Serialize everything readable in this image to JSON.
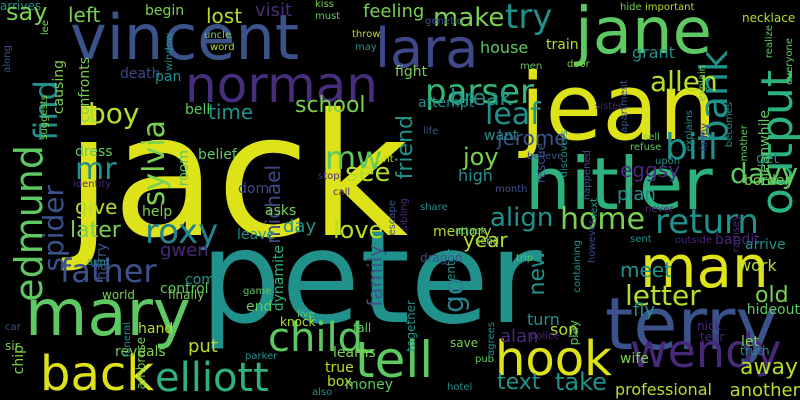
{
  "words": [
    {
      "text": "jack",
      "color": "#dde318"
    },
    {
      "text": "peter",
      "color": "#21918c"
    },
    {
      "text": "jean",
      "color": "#dde318"
    },
    {
      "text": "vincent",
      "color": "#3b528b"
    },
    {
      "text": "hitler",
      "color": "#2db27d"
    },
    {
      "text": "jane",
      "color": "#5ec962"
    },
    {
      "text": "lara",
      "color": "#3e4989"
    },
    {
      "text": "norman",
      "color": "#472d7b"
    },
    {
      "text": "mary",
      "color": "#5ec962"
    },
    {
      "text": "terry",
      "color": "#3b528b"
    },
    {
      "text": "man",
      "color": "#dde318"
    },
    {
      "text": "tell",
      "color": "#5ec962"
    },
    {
      "text": "hook",
      "color": "#dde318"
    },
    {
      "text": "back",
      "color": "#dde318"
    },
    {
      "text": "elliott",
      "color": "#2db27d"
    },
    {
      "text": "child",
      "color": "#5ec962"
    },
    {
      "text": "wendy",
      "color": "#482878"
    },
    {
      "text": "edmund",
      "color": "#5ec962"
    },
    {
      "text": "find",
      "color": "#21918c"
    },
    {
      "text": "output",
      "color": "#2db27d"
    },
    {
      "text": "bank",
      "color": "#21918c"
    },
    {
      "text": "father",
      "color": "#3b528b"
    },
    {
      "text": "parser",
      "color": "#35b779"
    },
    {
      "text": "bill",
      "color": "#21918c"
    },
    {
      "text": "return",
      "color": "#21918c"
    },
    {
      "text": "roxy",
      "color": "#26828e"
    },
    {
      "text": "sylvia",
      "color": "#7ad151"
    },
    {
      "text": "spider",
      "color": "#3b528b"
    },
    {
      "text": "mw",
      "color": "#5ec962"
    },
    {
      "text": "mr",
      "color": "#21918c"
    },
    {
      "text": "boy",
      "color": "#b5de2b"
    },
    {
      "text": "try",
      "color": "#21918c"
    },
    {
      "text": "home",
      "color": "#7ad151"
    },
    {
      "text": "letter",
      "color": "#b5de2b"
    },
    {
      "text": "go",
      "color": "#26828e"
    },
    {
      "text": "see",
      "color": "#b5de2b"
    },
    {
      "text": "leaf",
      "color": "#21918c"
    },
    {
      "text": "allen",
      "color": "#b5de2b"
    },
    {
      "text": "davy",
      "color": "#5ec962"
    },
    {
      "text": "take",
      "color": "#21918c"
    },
    {
      "text": "love",
      "color": "#b5de2b"
    },
    {
      "text": "text",
      "color": "#21918c"
    },
    {
      "text": "arrives",
      "color": "#21918c"
    },
    {
      "text": "align",
      "color": "#21918c"
    },
    {
      "text": "make",
      "color": "#7ad151"
    },
    {
      "text": "say",
      "color": "#7ad151"
    },
    {
      "text": "later",
      "color": "#7ad151"
    },
    {
      "text": "away",
      "color": "#b5de2b"
    },
    {
      "text": "old",
      "color": "#7ad151"
    },
    {
      "text": "joy",
      "color": "#7ad151"
    },
    {
      "text": "friend",
      "color": "#21918c"
    },
    {
      "text": "michael",
      "color": "#3e4989"
    },
    {
      "text": "school",
      "color": "#7ad151"
    },
    {
      "text": "break",
      "color": "#21918c"
    },
    {
      "text": "year",
      "color": "#b5de2b"
    },
    {
      "text": "give",
      "color": "#b5de2b"
    },
    {
      "text": "new",
      "color": "#21918c"
    },
    {
      "text": "family",
      "color": "#3b528b"
    },
    {
      "text": "meet",
      "color": "#21918c"
    },
    {
      "text": "fly",
      "color": "#21918c"
    },
    {
      "text": "time",
      "color": "#21918c"
    },
    {
      "text": "left",
      "color": "#7ad151"
    },
    {
      "text": "lost",
      "color": "#b5de2b"
    },
    {
      "text": "day",
      "color": "#21918c"
    },
    {
      "text": "put",
      "color": "#b5de2b"
    },
    {
      "text": "professional",
      "color": "#b5de2b"
    },
    {
      "text": "another",
      "color": "#b5de2b"
    },
    {
      "text": "jerome",
      "color": "#3b528b"
    },
    {
      "text": "plan",
      "color": "#21918c"
    },
    {
      "text": "gwen",
      "color": "#482878"
    },
    {
      "text": "eggsy",
      "color": "#472d7b"
    },
    {
      "text": "house",
      "color": "#5ec962"
    },
    {
      "text": "grant",
      "color": "#21918c"
    },
    {
      "text": "work",
      "color": "#b5de2b"
    },
    {
      "text": "son",
      "color": "#b5de2b"
    },
    {
      "text": "turn",
      "color": "#21918c"
    },
    {
      "text": "alan",
      "color": "#482878"
    },
    {
      "text": "feeling",
      "color": "#7ad151"
    },
    {
      "text": "begin",
      "color": "#7ad151"
    },
    {
      "text": "visit",
      "color": "#472d7b"
    },
    {
      "text": "train",
      "color": "#b5de2b"
    },
    {
      "text": "want",
      "color": "#21918c"
    },
    {
      "text": "high",
      "color": "#21918c"
    },
    {
      "text": "fight",
      "color": "#7ad151"
    },
    {
      "text": "attempt",
      "color": "#21918c"
    },
    {
      "text": "causing",
      "color": "#7ad151"
    },
    {
      "text": "help",
      "color": "#7ad151"
    },
    {
      "text": "control",
      "color": "#5ec962"
    },
    {
      "text": "come",
      "color": "#21918c"
    },
    {
      "text": "end",
      "color": "#5ec962"
    },
    {
      "text": "harry",
      "color": "#3b528b"
    },
    {
      "text": "hand",
      "color": "#b5de2b"
    },
    {
      "text": "reveals",
      "color": "#7ad151"
    },
    {
      "text": "true",
      "color": "#b5de2b"
    },
    {
      "text": "box",
      "color": "#b5de2b"
    },
    {
      "text": "money",
      "color": "#5ec962"
    },
    {
      "text": "memory",
      "color": "#b5de2b"
    },
    {
      "text": "learns",
      "color": "#7ad151"
    },
    {
      "text": "dynamite",
      "color": "#2db27d"
    },
    {
      "text": "asks",
      "color": "#7ad151"
    },
    {
      "text": "leave",
      "color": "#21918c"
    },
    {
      "text": "belief",
      "color": "#5ec962"
    },
    {
      "text": "dom",
      "color": "#3e4989"
    },
    {
      "text": "dress",
      "color": "#5ec962"
    },
    {
      "text": "confronts",
      "color": "#7ad151"
    },
    {
      "text": "death",
      "color": "#3e4989"
    },
    {
      "text": "pan",
      "color": "#21918c"
    },
    {
      "text": "bell",
      "color": "#5ec962"
    },
    {
      "text": "room",
      "color": "#5ec962"
    },
    {
      "text": "let",
      "color": "#7ad151"
    },
    {
      "text": "get",
      "color": "#21918c"
    },
    {
      "text": "hideout",
      "color": "#5ec962"
    },
    {
      "text": "meanwhile",
      "color": "#5ec962"
    },
    {
      "text": "bandit",
      "color": "#482878"
    },
    {
      "text": "arrive",
      "color": "#21918c"
    },
    {
      "text": "border",
      "color": "#7ad151"
    },
    {
      "text": "truth",
      "color": "#21918c"
    },
    {
      "text": "wife",
      "color": "#7ad151"
    },
    {
      "text": "tear",
      "color": "#482878"
    },
    {
      "text": "nick",
      "color": "#482878"
    },
    {
      "text": "chip",
      "color": "#7ad151"
    },
    {
      "text": "sir",
      "color": "#7ad151"
    },
    {
      "text": "car",
      "color": "#3b528b"
    },
    {
      "text": "aunt",
      "color": "#21918c"
    },
    {
      "text": "world",
      "color": "#7ad151"
    },
    {
      "text": "funeral",
      "color": "#21918c"
    },
    {
      "text": "ambrose",
      "color": "#7ad151"
    },
    {
      "text": "finally",
      "color": "#7ad151"
    },
    {
      "text": "game",
      "color": "#5ec962"
    },
    {
      "text": "knock",
      "color": "#b5de2b"
    },
    {
      "text": "live",
      "color": "#5ec962"
    },
    {
      "text": "fall",
      "color": "#5ec962"
    },
    {
      "text": "parker",
      "color": "#21918c"
    },
    {
      "text": "also",
      "color": "#21918c"
    },
    {
      "text": "hotel",
      "color": "#21918c"
    },
    {
      "text": "save",
      "color": "#7ad151"
    },
    {
      "text": "pub",
      "color": "#5ec962"
    },
    {
      "text": "agrees",
      "color": "#21918c"
    },
    {
      "text": "police",
      "color": "#482878"
    },
    {
      "text": "play",
      "color": "#5ec962"
    },
    {
      "text": "center",
      "color": "#21918c"
    },
    {
      "text": "together",
      "color": "#21918c"
    },
    {
      "text": "dragon",
      "color": "#3b528b"
    },
    {
      "text": "attack",
      "color": "#5ec962"
    },
    {
      "text": "send",
      "color": "#7ad151"
    },
    {
      "text": "trip",
      "color": "#5ec962"
    },
    {
      "text": "containing",
      "color": "#21918c"
    },
    {
      "text": "however",
      "color": "#3e4989"
    },
    {
      "text": "sent",
      "color": "#21918c"
    },
    {
      "text": "outside",
      "color": "#482878"
    },
    {
      "text": "never",
      "color": "#482878"
    },
    {
      "text": "ramsey",
      "color": "#472d7b"
    },
    {
      "text": "upon",
      "color": "#21918c"
    },
    {
      "text": "refuse",
      "color": "#5ec962"
    },
    {
      "text": "believe",
      "color": "#3b528b"
    },
    {
      "text": "sell",
      "color": "#5ec962"
    },
    {
      "text": "month",
      "color": "#3b528b"
    },
    {
      "text": "share",
      "color": "#21918c"
    },
    {
      "text": "escape",
      "color": "#3b528b"
    },
    {
      "text": "sibling",
      "color": "#482878"
    },
    {
      "text": "call",
      "color": "#472d7b"
    },
    {
      "text": "stop",
      "color": "#472d7b"
    },
    {
      "text": "night",
      "color": "#b5de2b"
    },
    {
      "text": "life",
      "color": "#3b528b"
    },
    {
      "text": "sister",
      "color": "#482878"
    },
    {
      "text": "mother",
      "color": "#5ec962"
    },
    {
      "text": "explains",
      "color": "#21918c"
    },
    {
      "text": "becomes",
      "color": "#21918c"
    },
    {
      "text": "fanny",
      "color": "#472d7b"
    },
    {
      "text": "happened",
      "color": "#3b528b"
    },
    {
      "text": "next",
      "color": "#21918c"
    },
    {
      "text": "discovers",
      "color": "#21918c"
    },
    {
      "text": "rescue",
      "color": "#3b528b"
    },
    {
      "text": "identity",
      "color": "#472d7b"
    },
    {
      "text": "suggests",
      "color": "#7ad151"
    },
    {
      "text": "along",
      "color": "#3b528b"
    },
    {
      "text": "lee",
      "color": "#7ad151"
    },
    {
      "text": "kiss",
      "color": "#7ad151"
    },
    {
      "text": "must",
      "color": "#5ec962"
    },
    {
      "text": "throw",
      "color": "#b5de2b"
    },
    {
      "text": "may",
      "color": "#21918c"
    },
    {
      "text": "genetic",
      "color": "#3b528b"
    },
    {
      "text": "uncle",
      "color": "#7ad151"
    },
    {
      "text": "word",
      "color": "#b5de2b"
    },
    {
      "text": "window",
      "color": "#21918c"
    },
    {
      "text": "men",
      "color": "#5ec962"
    },
    {
      "text": "door",
      "color": "#7ad151"
    },
    {
      "text": "apartment",
      "color": "#3b528b"
    },
    {
      "text": "hide",
      "color": "#7ad151"
    },
    {
      "text": "important",
      "color": "#b5de2b"
    },
    {
      "text": "explain",
      "color": "#7ad151"
    },
    {
      "text": "necklace",
      "color": "#b5de2b"
    },
    {
      "text": "everyone",
      "color": "#5ec962"
    },
    {
      "text": "realize",
      "color": "#5ec962"
    }
  ]
}
